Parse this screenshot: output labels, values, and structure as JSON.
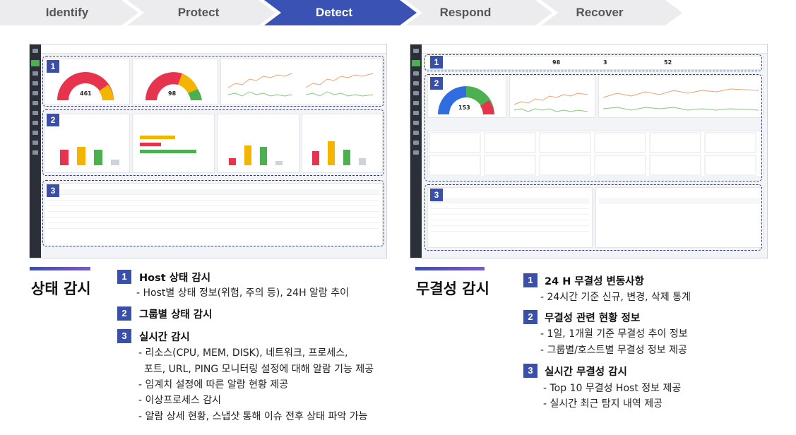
{
  "steps": [
    "Identify",
    "Protect",
    "Detect",
    "Respond",
    "Recover"
  ],
  "active_step": 2,
  "colors": {
    "accent": "#3a4fa8",
    "step_active": "#3b52b5",
    "step_inactive": "#ececee"
  },
  "left_shot": {
    "badges": [
      "1",
      "2",
      "3"
    ],
    "gauge_values": [
      "461",
      "98"
    ]
  },
  "right_shot": {
    "badges": [
      "1",
      "2",
      "3"
    ],
    "stat_values": [
      "98",
      "3",
      "52"
    ],
    "gauge_value": "153"
  },
  "left_desc": {
    "title": "상태 감시",
    "items": [
      {
        "num": "1",
        "heading": "Host 상태 감시",
        "lines": [
          "- Host별 상태 정보(위험, 주의 등), 24H 알람 추이"
        ]
      },
      {
        "num": "2",
        "heading": "그룹별 상태 감시",
        "lines": []
      },
      {
        "num": "3",
        "heading": "실시간 감시",
        "lines": [
          "- 리소스(CPU, MEM, DISK), 네트워크, 프로세스,",
          "포트, URL, PING 모니터링 설정에 대해 알람 기능 제공",
          "- 임계치 설정에 따른 알람 현황 제공",
          "- 이상프로세스 감시",
          "- 알람 상세 현황, 스냅샷 통해 이슈  전후 상태 파악 가능"
        ]
      }
    ]
  },
  "right_desc": {
    "title": "무결성 감시",
    "items": [
      {
        "num": "1",
        "heading": "24 H 무결성 변동사항",
        "lines": [
          "- 24시간 기준 신규, 변경, 삭제 통계"
        ]
      },
      {
        "num": "2",
        "heading": "무결성 관련 현황 정보",
        "lines": [
          "- 1일, 1개월 기준 무결성 추이 정보",
          "- 그룹별/호스트별 무결성 정보 제공"
        ]
      },
      {
        "num": "3",
        "heading": "실시간 무결성 감시",
        "lines": [
          "- Top 10 무결성 Host 정보 제공",
          "- 실시간 최근 탐지 내역 제공"
        ]
      }
    ]
  }
}
